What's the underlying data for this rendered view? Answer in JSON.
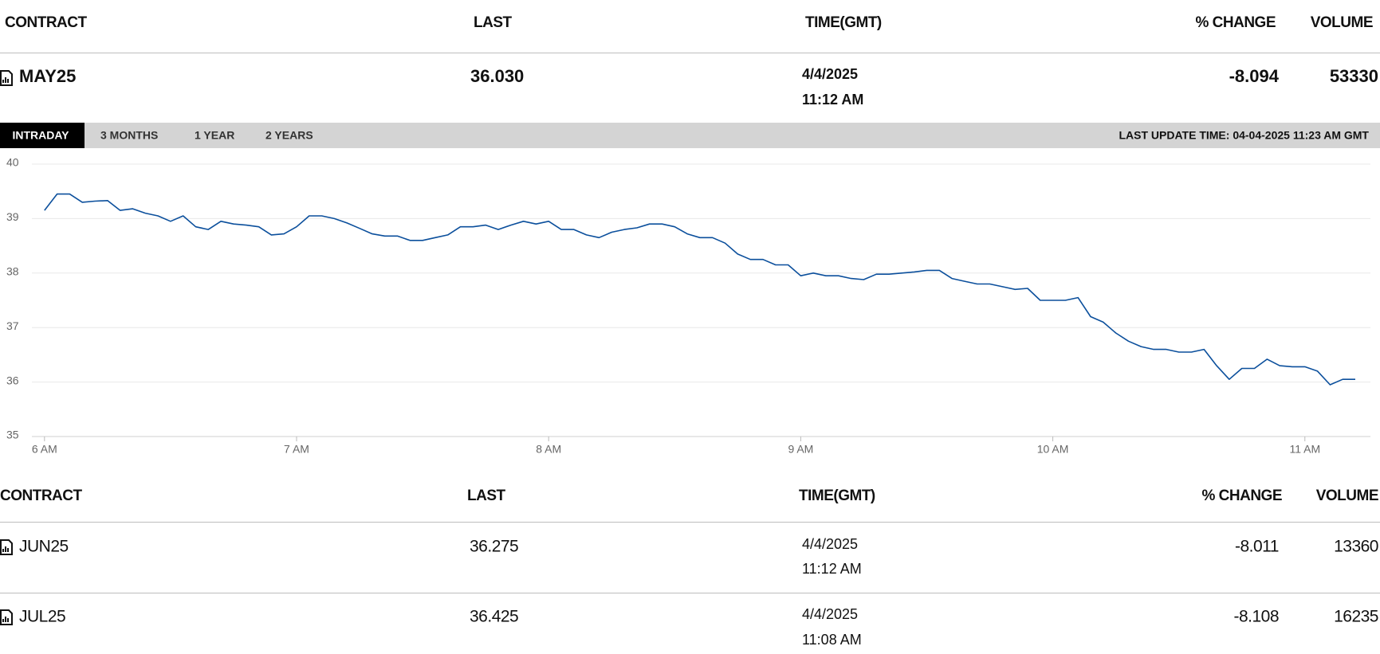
{
  "header": {
    "columns": [
      "CONTRACT",
      "LAST",
      "TIME(GMT)",
      "% CHANGE",
      "VOLUME"
    ]
  },
  "main_row": {
    "contract": "MAY25",
    "last": "36.030",
    "date": "4/4/2025",
    "time": "11:12 AM",
    "change": "-8.094",
    "volume": "53330"
  },
  "tabs": [
    "INTRADAY",
    "3 MONTHS",
    "1 YEAR",
    "2 YEARS"
  ],
  "last_update": "LAST UPDATE TIME: 04-04-2025 11:23 AM GMT",
  "chart_data": {
    "type": "line",
    "color": "#0b4f9c",
    "grid": true,
    "x": [
      6.0,
      6.05,
      6.1,
      6.15,
      6.2,
      6.25,
      6.3,
      6.35,
      6.4,
      6.45,
      6.5,
      6.55,
      6.6,
      6.65,
      6.7,
      6.75,
      6.8,
      6.85,
      6.9,
      6.95,
      7.0,
      7.05,
      7.1,
      7.15,
      7.2,
      7.25,
      7.3,
      7.35,
      7.4,
      7.45,
      7.5,
      7.55,
      7.6,
      7.65,
      7.7,
      7.75,
      7.8,
      7.85,
      7.9,
      7.95,
      8.0,
      8.05,
      8.1,
      8.15,
      8.2,
      8.25,
      8.3,
      8.35,
      8.4,
      8.45,
      8.5,
      8.55,
      8.6,
      8.65,
      8.7,
      8.75,
      8.8,
      8.85,
      8.9,
      8.95,
      9.0,
      9.05,
      9.1,
      9.15,
      9.2,
      9.25,
      9.3,
      9.35,
      9.4,
      9.45,
      9.5,
      9.55,
      9.6,
      9.65,
      9.7,
      9.75,
      9.8,
      9.85,
      9.9,
      9.95,
      10.0,
      10.05,
      10.1,
      10.15,
      10.2,
      10.25,
      10.3,
      10.35,
      10.4,
      10.45,
      10.5,
      10.55,
      10.6,
      10.65,
      10.7,
      10.75,
      10.8,
      10.85,
      10.9,
      10.95,
      11.0,
      11.05,
      11.1,
      11.15,
      11.2
    ],
    "values": [
      39.15,
      39.45,
      39.45,
      39.3,
      39.32,
      39.33,
      39.15,
      39.18,
      39.1,
      39.05,
      38.95,
      39.05,
      38.85,
      38.8,
      38.95,
      38.9,
      38.88,
      38.85,
      38.7,
      38.72,
      38.85,
      39.05,
      39.05,
      39.0,
      38.92,
      38.82,
      38.72,
      38.68,
      38.68,
      38.6,
      38.6,
      38.65,
      38.7,
      38.85,
      38.85,
      38.88,
      38.8,
      38.88,
      38.95,
      38.9,
      38.95,
      38.8,
      38.8,
      38.7,
      38.65,
      38.75,
      38.8,
      38.83,
      38.9,
      38.9,
      38.85,
      38.72,
      38.65,
      38.65,
      38.55,
      38.35,
      38.25,
      38.25,
      38.15,
      38.15,
      37.95,
      38.0,
      37.95,
      37.95,
      37.9,
      37.88,
      37.98,
      37.98,
      38.0,
      38.02,
      38.05,
      38.05,
      37.9,
      37.85,
      37.8,
      37.8,
      37.75,
      37.7,
      37.72,
      37.5,
      37.5,
      37.5,
      37.55,
      37.2,
      37.1,
      36.9,
      36.75,
      36.65,
      36.6,
      36.6,
      36.55,
      36.55,
      36.6,
      36.3,
      36.05,
      36.25,
      36.25,
      36.42,
      36.3,
      36.28,
      36.28,
      36.2,
      35.95,
      36.05,
      36.05
    ],
    "xlim": [
      5.95,
      11.26
    ],
    "xticks": [
      {
        "value": 6,
        "label": "6 AM"
      },
      {
        "value": 7,
        "label": "7 AM"
      },
      {
        "value": 8,
        "label": "8 AM"
      },
      {
        "value": 9,
        "label": "9 AM"
      },
      {
        "value": 10,
        "label": "10 AM"
      },
      {
        "value": 11,
        "label": "11 AM"
      }
    ],
    "ylim": [
      35,
      40
    ],
    "yticks": [
      35,
      36,
      37,
      38,
      39,
      40
    ]
  },
  "table": {
    "columns": [
      "CONTRACT",
      "LAST",
      "TIME(GMT)",
      "% CHANGE",
      "VOLUME"
    ],
    "rows": [
      [
        "JUN25",
        "36.275",
        "4/4/2025",
        "11:12 AM",
        "-8.011",
        "13360"
      ],
      [
        "JUL25",
        "36.425",
        "4/4/2025",
        "11:08 AM",
        "-8.108",
        "16235"
      ]
    ]
  }
}
